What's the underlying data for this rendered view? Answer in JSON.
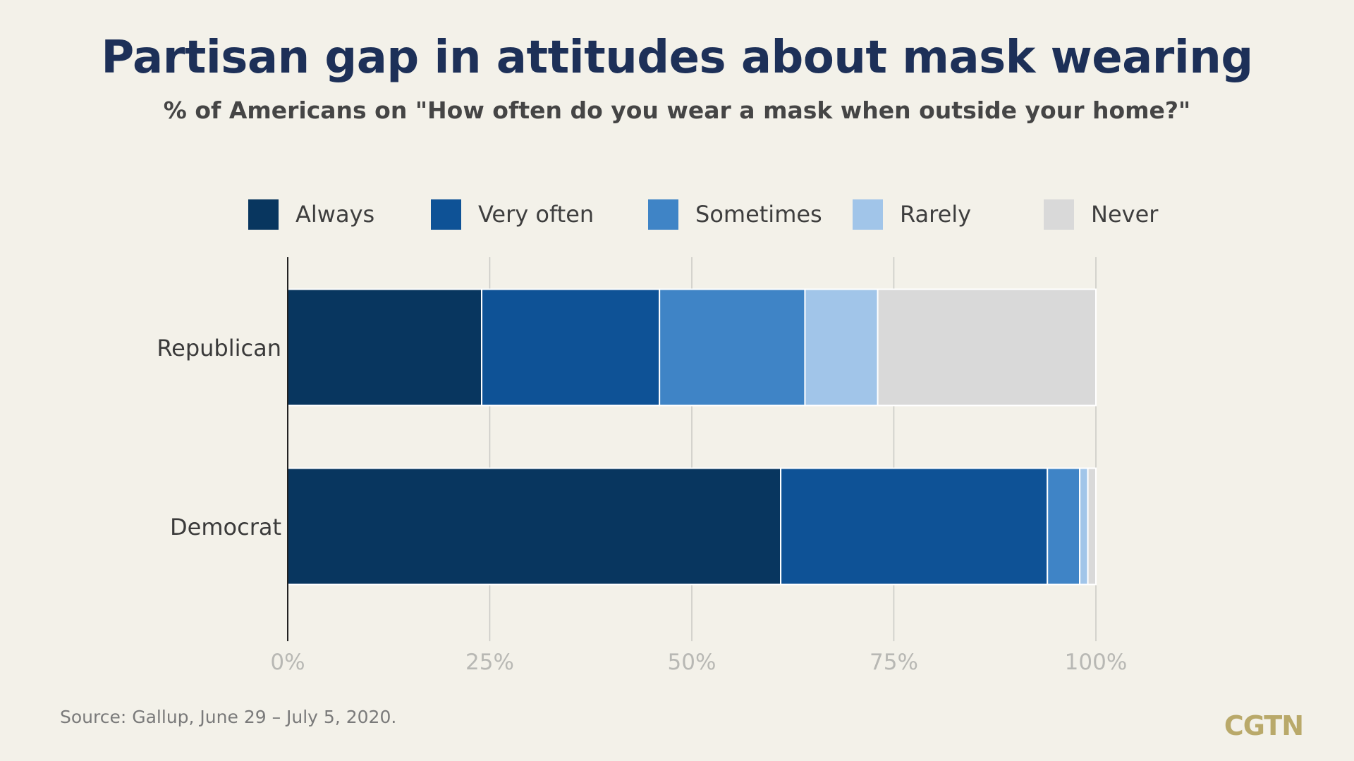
{
  "title": "Partisan gap in attitudes about mask wearing",
  "subtitle": "% of Americans on \"How often do you wear a mask when outside your home?\"",
  "source": "Source: Gallup, June 29 – July 5, 2020.",
  "brand": "CGTN",
  "legend": [
    {
      "label": "Always",
      "color": "#08365f"
    },
    {
      "label": "Very often",
      "color": "#0e5296"
    },
    {
      "label": "Sometimes",
      "color": "#3f84c6"
    },
    {
      "label": "Rarely",
      "color": "#a1c5e9"
    },
    {
      "label": "Never",
      "color": "#d9d9d9"
    }
  ],
  "chart_data": {
    "type": "bar",
    "orientation": "horizontal",
    "stacked": true,
    "categories": [
      "Republican",
      "Democrat"
    ],
    "series": [
      {
        "name": "Always",
        "values": [
          24,
          61
        ],
        "color": "#08365f"
      },
      {
        "name": "Very often",
        "values": [
          22,
          33
        ],
        "color": "#0e5296"
      },
      {
        "name": "Sometimes",
        "values": [
          18,
          4
        ],
        "color": "#3f84c6"
      },
      {
        "name": "Rarely",
        "values": [
          9,
          1
        ],
        "color": "#a1c5e9"
      },
      {
        "name": "Never",
        "values": [
          27,
          1
        ],
        "color": "#d9d9d9"
      }
    ],
    "xlim": [
      0,
      100
    ],
    "xticks": [
      "0%",
      "25%",
      "50%",
      "75%",
      "100%"
    ],
    "grid": true,
    "legend_position": "top"
  }
}
